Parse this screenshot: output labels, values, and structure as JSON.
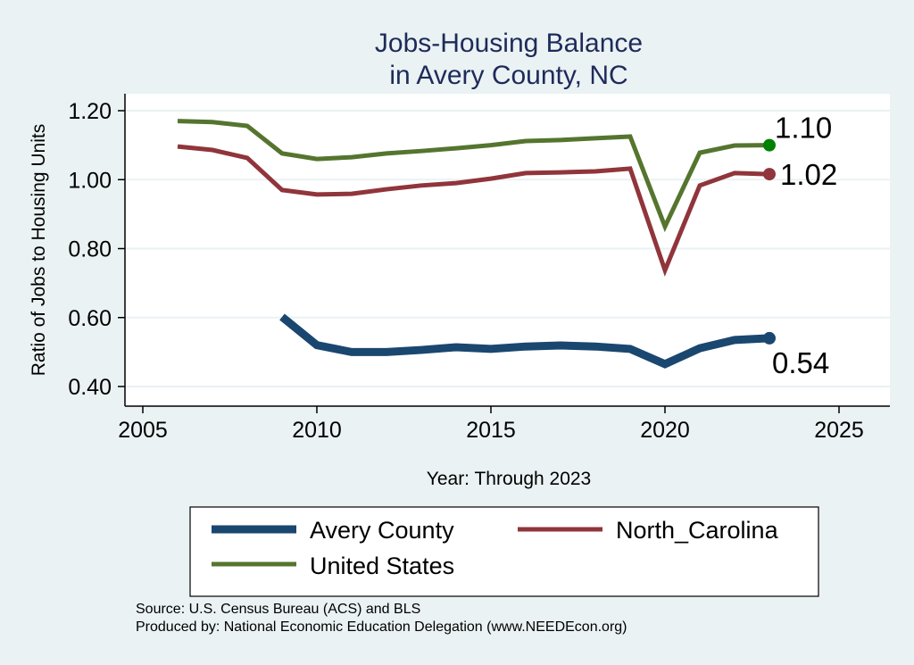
{
  "chart_data": {
    "type": "line",
    "title": [
      "Jobs-Housing Balance",
      "in Avery County, NC"
    ],
    "xlabel": "Year: Through 2023",
    "ylabel": "Ratio of Jobs to Housing Units",
    "xlim": [
      2005,
      2026.5
    ],
    "ylim": [
      0.35,
      1.25
    ],
    "xticks": [
      2005,
      2010,
      2015,
      2020,
      2025
    ],
    "yticks": [
      0.4,
      0.6,
      0.8,
      1.0,
      1.2
    ],
    "ytick_labels": [
      "0.40",
      "0.60",
      "0.80",
      "1.00",
      "1.20"
    ],
    "grid": true,
    "legend_position": "bottom",
    "series": [
      {
        "name": "Avery County",
        "color": "#1a476f",
        "width": 9,
        "x": [
          2009,
          2010,
          2011,
          2012,
          2013,
          2014,
          2015,
          2016,
          2017,
          2018,
          2019,
          2020,
          2021,
          2022,
          2023
        ],
        "values": [
          0.602,
          0.52,
          0.5,
          0.5,
          0.506,
          0.514,
          0.509,
          0.516,
          0.519,
          0.516,
          0.509,
          0.465,
          0.511,
          0.535,
          0.54
        ],
        "end_label": "0.54",
        "end_marker_color": "#1a476f",
        "label_pos": "below"
      },
      {
        "name": "North_Carolina",
        "color": "#90353b",
        "width": 5,
        "x": [
          2006,
          2007,
          2008,
          2009,
          2010,
          2011,
          2012,
          2013,
          2014,
          2015,
          2016,
          2017,
          2018,
          2019,
          2020,
          2021,
          2022,
          2023
        ],
        "values": [
          1.096,
          1.086,
          1.063,
          0.97,
          0.957,
          0.959,
          0.972,
          0.983,
          0.99,
          1.003,
          1.019,
          1.021,
          1.024,
          1.032,
          0.737,
          0.983,
          1.019,
          1.016
        ],
        "end_label": "1.02",
        "end_marker_color": "#90353b",
        "label_pos": "right"
      },
      {
        "name": "United States",
        "color": "#55752f",
        "width": 5,
        "x": [
          2006,
          2007,
          2008,
          2009,
          2010,
          2011,
          2012,
          2013,
          2014,
          2015,
          2016,
          2017,
          2018,
          2019,
          2020,
          2021,
          2022,
          2023
        ],
        "values": [
          1.17,
          1.167,
          1.156,
          1.076,
          1.06,
          1.065,
          1.076,
          1.083,
          1.091,
          1.1,
          1.112,
          1.115,
          1.12,
          1.125,
          0.864,
          1.078,
          1.099,
          1.1
        ],
        "end_label": "1.10",
        "end_marker_color": "#008000",
        "label_pos": "above"
      }
    ]
  },
  "notes": {
    "source": "Source: U.S. Census Bureau (ACS) and BLS",
    "produced": "Produced by: National Economic Education Delegation (www.NEEDEcon.org)"
  }
}
